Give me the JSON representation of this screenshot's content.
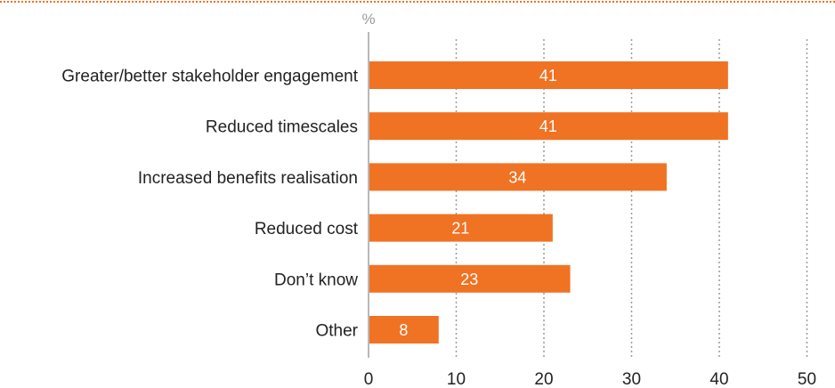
{
  "colors": {
    "bar": "#f07223",
    "top_rule": "#f07223",
    "grid": "#9a9a9a",
    "axis": "#b8b8b8",
    "text": "#222222",
    "unit_text": "#9a9a9a",
    "bar_label": "#ffffff"
  },
  "chart_data": {
    "type": "bar",
    "orientation": "horizontal",
    "title": "",
    "xlabel": "",
    "ylabel": "",
    "unit_label": "%",
    "categories": [
      "Greater/better stakeholder engagement",
      "Reduced timescales",
      "Increased benefits realisation",
      "Reduced cost",
      "Don’t know",
      "Other"
    ],
    "values": [
      41,
      41,
      34,
      21,
      23,
      8
    ],
    "xlim": [
      0,
      50
    ],
    "xticks": [
      0,
      10,
      20,
      30,
      40,
      50
    ],
    "grid": "vertical-dotted",
    "legend": "none",
    "data_labels": "inside-bar"
  }
}
